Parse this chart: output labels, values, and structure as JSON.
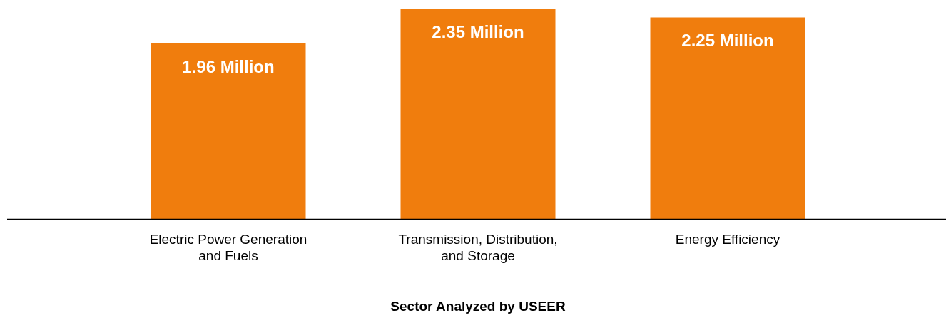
{
  "chart_data": {
    "type": "bar",
    "xlabel": "Sector Analyzed by USEER",
    "categories": [
      "Electric Power Generation and Fuels",
      "Transmission, Distribution, and Storage",
      "Energy Efficiency"
    ],
    "values": [
      1.96,
      2.35,
      2.25
    ],
    "value_labels": [
      "1.96 Million",
      "2.35 Million",
      "2.25 Million"
    ],
    "color": "#f07d0d",
    "grid": false,
    "legend": false
  }
}
